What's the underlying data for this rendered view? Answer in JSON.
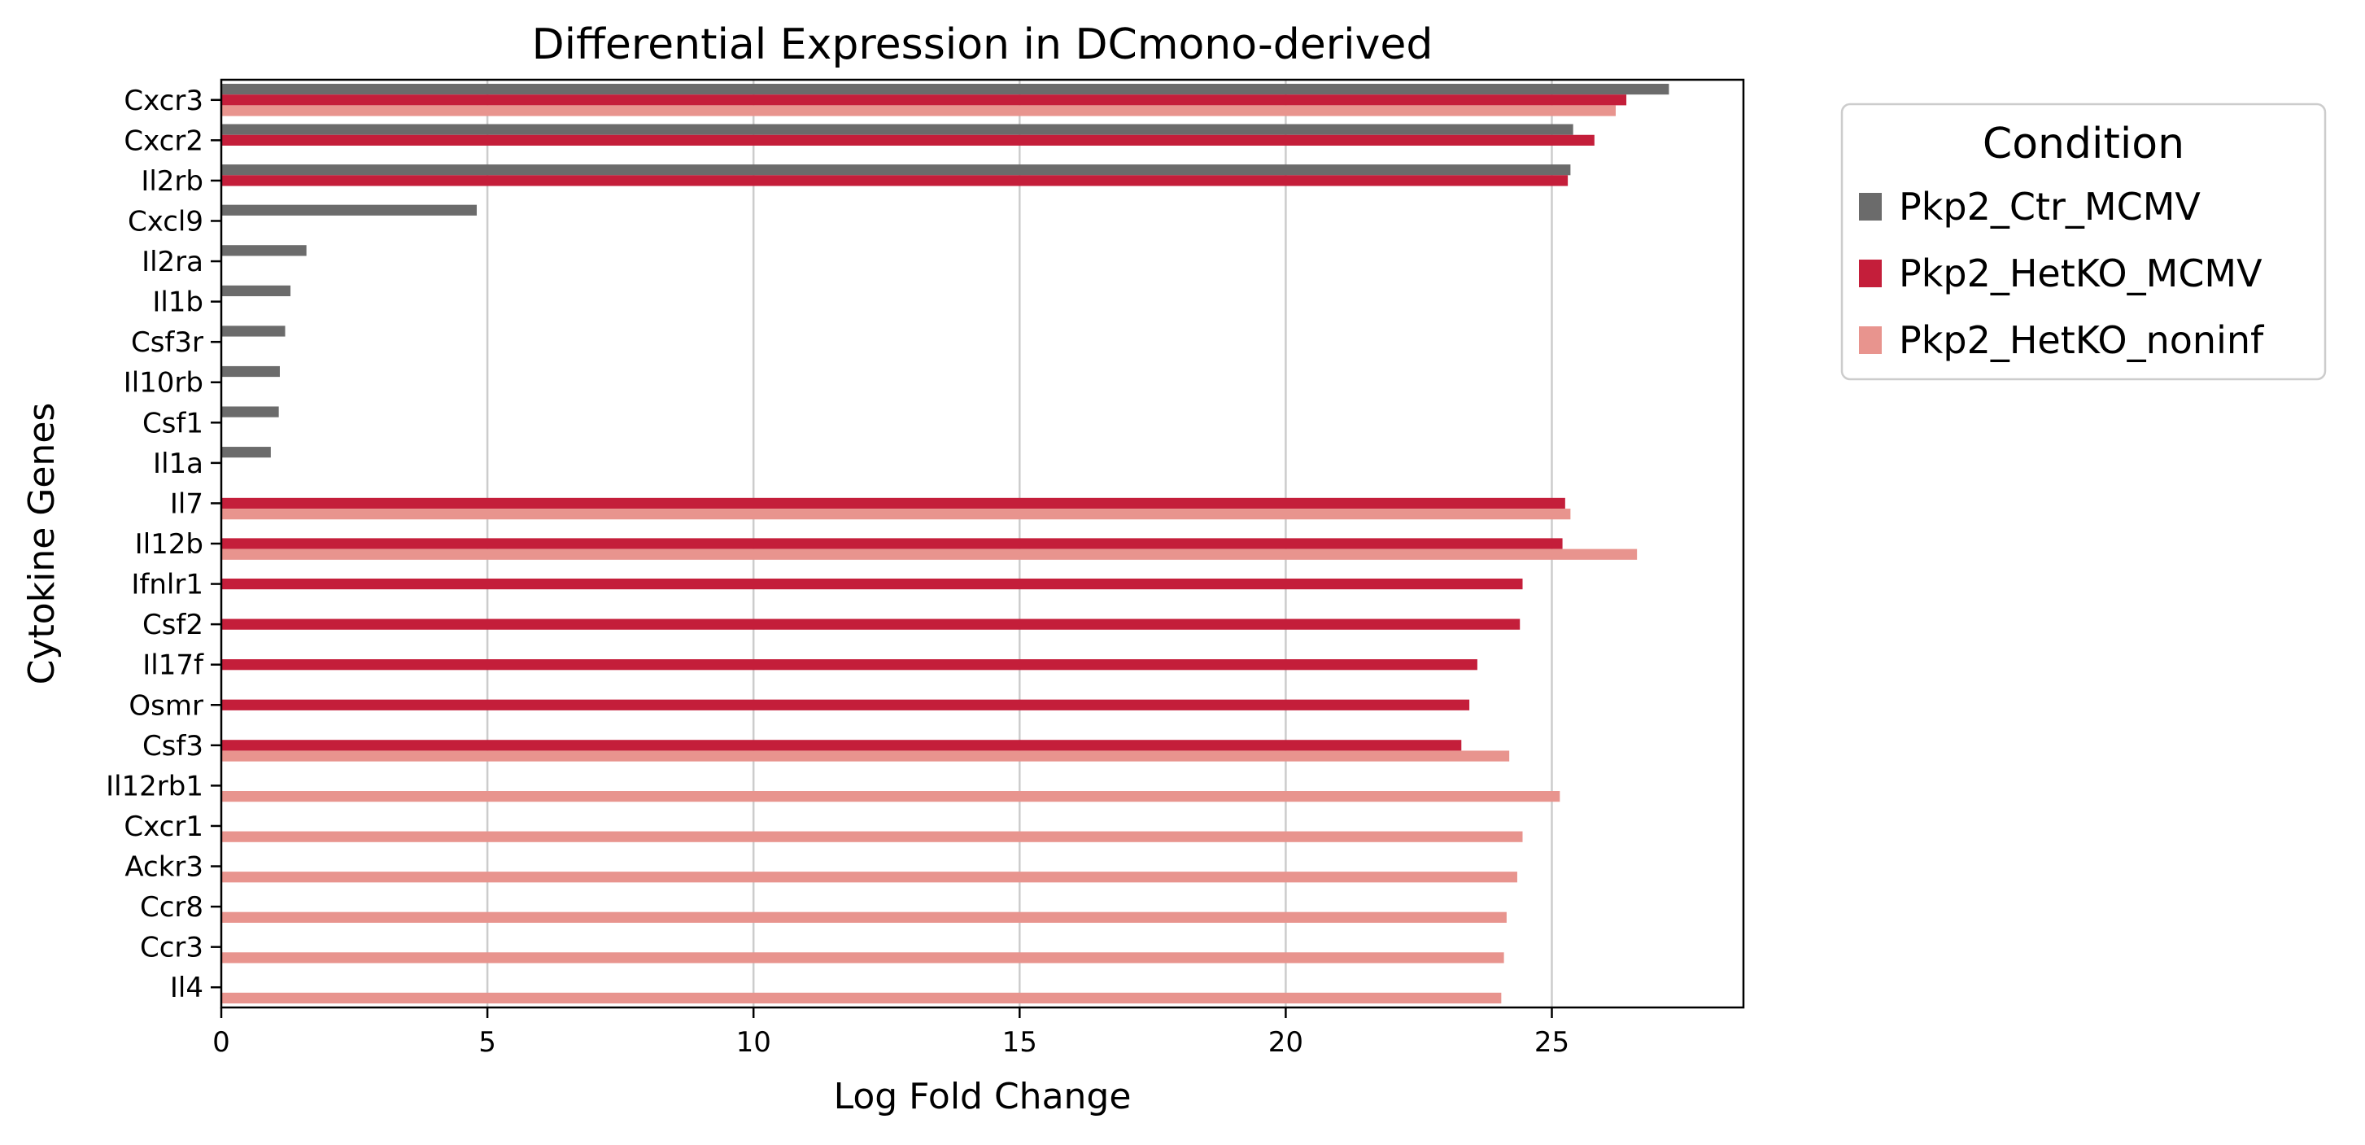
{
  "chart_data": {
    "type": "bar",
    "orientation": "horizontal",
    "title": "Differential Expression in DCmono-derived",
    "xlabel": "Log Fold Change",
    "ylabel": "Cytokine Genes",
    "xlim": [
      0,
      28.6
    ],
    "xticks": [
      0,
      5,
      10,
      15,
      20,
      25
    ],
    "grid": "vertical",
    "legend": {
      "title": "Condition",
      "placement": "outside-top-right"
    },
    "categories": [
      "Cxcr3",
      "Cxcr2",
      "Il2rb",
      "Cxcl9",
      "Il2ra",
      "Il1b",
      "Csf3r",
      "Il10rb",
      "Csf1",
      "Il1a",
      "Il7",
      "Il12b",
      "Ifnlr1",
      "Csf2",
      "Il17f",
      "Osmr",
      "Csf3",
      "Il12rb1",
      "Cxcr1",
      "Ackr3",
      "Ccr8",
      "Ccr3",
      "Il4"
    ],
    "series": [
      {
        "name": "Pkp2_Ctr_MCMV",
        "color": "#6b6b6b",
        "values": [
          27.2,
          25.4,
          25.35,
          4.8,
          1.6,
          1.3,
          1.2,
          1.1,
          1.08,
          0.93,
          null,
          null,
          null,
          null,
          null,
          null,
          null,
          null,
          null,
          null,
          null,
          null,
          null
        ]
      },
      {
        "name": "Pkp2_HetKO_MCMV",
        "color": "#c41e3a",
        "values": [
          26.4,
          25.8,
          25.3,
          null,
          null,
          null,
          null,
          null,
          null,
          null,
          25.25,
          25.2,
          24.45,
          24.4,
          23.6,
          23.45,
          23.3,
          null,
          null,
          null,
          null,
          null,
          null
        ]
      },
      {
        "name": "Pkp2_HetKO_noninf",
        "color": "#e8948e",
        "values": [
          26.2,
          null,
          null,
          null,
          null,
          null,
          null,
          null,
          null,
          null,
          25.35,
          26.6,
          null,
          null,
          null,
          null,
          24.2,
          25.15,
          24.45,
          24.35,
          24.15,
          24.1,
          24.05
        ]
      }
    ]
  }
}
